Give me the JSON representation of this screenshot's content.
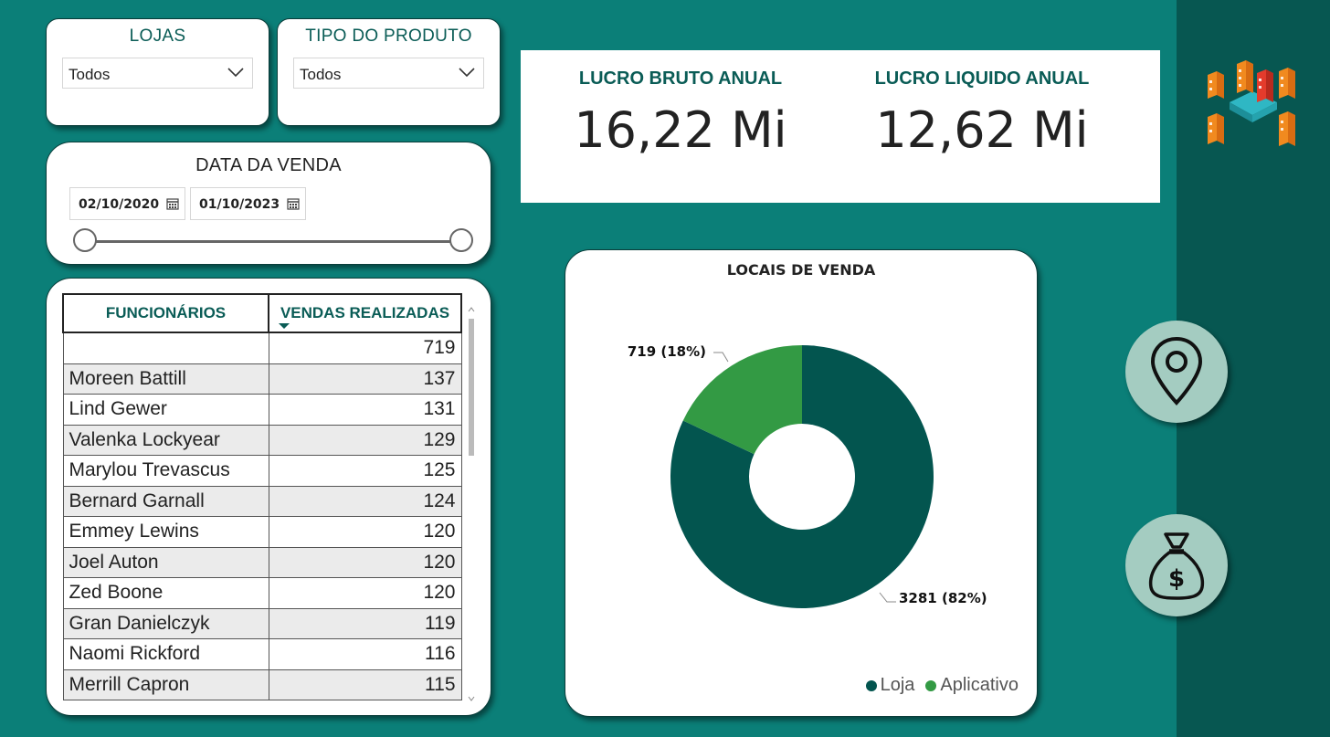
{
  "filters": {
    "lojas": {
      "title": "LOJAS",
      "value": "Todos"
    },
    "tipo_produto": {
      "title": "TIPO DO PRODUTO",
      "value": "Todos"
    },
    "data_venda": {
      "title": "DATA DA VENDA",
      "start": "02/10/2020",
      "end": "01/10/2023"
    }
  },
  "kpis": {
    "bruto": {
      "label": "LUCRO BRUTO ANUAL",
      "value": "16,22 Mi"
    },
    "liquido": {
      "label": "LUCRO LIQUIDO ANUAL",
      "value": "12,62 Mi"
    }
  },
  "table": {
    "headers": [
      "FUNCIONÁRIOS",
      "VENDAS REALIZADAS"
    ],
    "rows": [
      [
        "",
        "719"
      ],
      [
        "Moreen Battill",
        "137"
      ],
      [
        "Lind Gewer",
        "131"
      ],
      [
        "Valenka Lockyear",
        "129"
      ],
      [
        "Marylou Trevascus",
        "125"
      ],
      [
        "Bernard Garnall",
        "124"
      ],
      [
        "Emmey Lewins",
        "120"
      ],
      [
        "Joel Auton",
        "120"
      ],
      [
        "Zed Boone",
        "120"
      ],
      [
        "Gran Danielczyk",
        "119"
      ],
      [
        "Naomi Rickford",
        "116"
      ],
      [
        "Merrill Capron",
        "115"
      ]
    ]
  },
  "chart_data": {
    "type": "pie",
    "title": "LOCAIS DE VENDA",
    "categories": [
      "Loja",
      "Aplicativo"
    ],
    "values": [
      3281,
      719
    ],
    "labels": [
      "3281 (82%)",
      "719 (18%)"
    ],
    "colors": [
      "#03554f",
      "#339a44"
    ],
    "legend_position": "bottom-right",
    "donut": true
  },
  "icons": {
    "logo": "buildings-logo-icon",
    "map": "map-pin-icon",
    "money": "money-bag-icon"
  }
}
